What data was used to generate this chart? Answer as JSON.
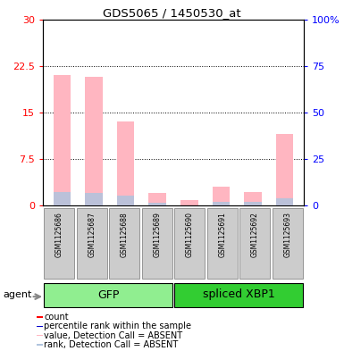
{
  "title": "GDS5065 / 1450530_at",
  "samples": [
    "GSM1125686",
    "GSM1125687",
    "GSM1125688",
    "GSM1125689",
    "GSM1125690",
    "GSM1125691",
    "GSM1125692",
    "GSM1125693"
  ],
  "absent_values": [
    21.0,
    20.8,
    13.5,
    2.0,
    0.8,
    3.0,
    2.2,
    11.5
  ],
  "absent_ranks": [
    7.2,
    6.7,
    5.5,
    1.6,
    0.0,
    2.0,
    1.7,
    4.0
  ],
  "present_values": [
    0.0,
    0.0,
    0.0,
    0.0,
    0.0,
    0.0,
    0.0,
    0.0
  ],
  "present_ranks": [
    0.0,
    0.0,
    0.0,
    0.0,
    0.0,
    0.0,
    0.0,
    0.0
  ],
  "ylim": [
    0,
    30
  ],
  "y2lim": [
    0,
    100
  ],
  "yticks": [
    0,
    7.5,
    15,
    22.5,
    30
  ],
  "ytick_labels": [
    "0",
    "7.5",
    "15",
    "22.5",
    "30"
  ],
  "y2ticks": [
    0,
    25,
    50,
    75,
    100
  ],
  "y2tick_labels": [
    "0",
    "25",
    "50",
    "75",
    "100%"
  ],
  "color_absent_value": "#FFB6C1",
  "color_absent_rank": "#B0C4DE",
  "color_present_value": "#FF0000",
  "color_present_rank": "#0000CC",
  "group_gfp_color": "#90EE90",
  "group_xbp1_color": "#32CD32",
  "group_label_gfp": "GFP",
  "group_label_xbp1": "spliced XBP1",
  "agent_label": "agent",
  "legend_items": [
    {
      "label": "count",
      "color": "#FF0000"
    },
    {
      "label": "percentile rank within the sample",
      "color": "#0000CC"
    },
    {
      "label": "value, Detection Call = ABSENT",
      "color": "#FFB6C1"
    },
    {
      "label": "rank, Detection Call = ABSENT",
      "color": "#B0C4DE"
    }
  ]
}
